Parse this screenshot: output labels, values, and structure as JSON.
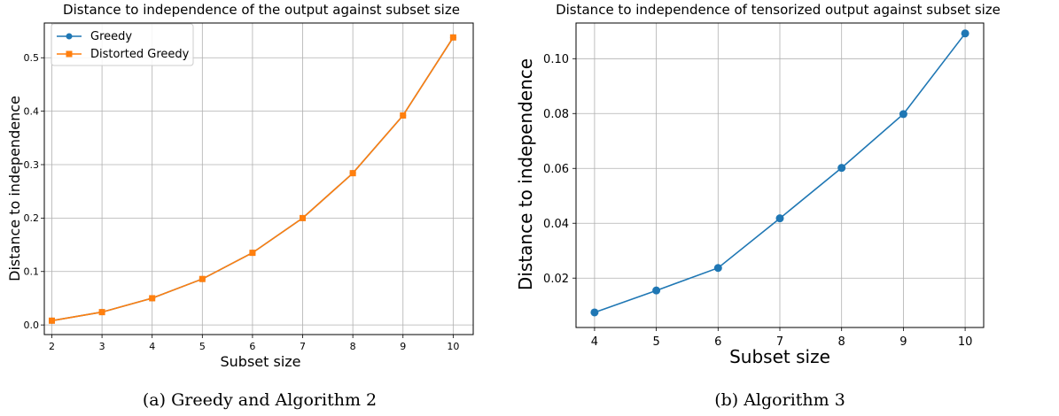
{
  "chart_data": [
    {
      "type": "line",
      "title": "Distance to independence of the output against subset size",
      "xlabel": "Subset size",
      "ylabel": "Distance to independence",
      "caption": "(a) Greedy and Algorithm 2",
      "x": [
        2,
        3,
        4,
        5,
        6,
        7,
        8,
        9,
        10
      ],
      "xticks": [
        "2",
        "3",
        "4",
        "5",
        "6",
        "7",
        "8",
        "9",
        "10"
      ],
      "yticks": [
        "0.0",
        "0.1",
        "0.2",
        "0.3",
        "0.4",
        "0.5"
      ],
      "ytick_values": [
        0.0,
        0.1,
        0.2,
        0.3,
        0.4,
        0.5
      ],
      "xlim": [
        1.85,
        10.4
      ],
      "ylim": [
        -0.018,
        0.565
      ],
      "grid": true,
      "legend": "upper-left",
      "series": [
        {
          "name": "Greedy",
          "color": "#1f77b4",
          "marker": "circle",
          "values": [
            0.008,
            0.024,
            0.05,
            0.086,
            0.135,
            0.2,
            0.284,
            0.392,
            0.538
          ]
        },
        {
          "name": "Distorted Greedy",
          "color": "#ff7f0e",
          "marker": "square",
          "values": [
            0.008,
            0.024,
            0.05,
            0.086,
            0.135,
            0.2,
            0.284,
            0.392,
            0.538
          ]
        }
      ]
    },
    {
      "type": "line",
      "title": "Distance to independence of tensorized output against subset size",
      "xlabel": "Subset size",
      "ylabel": "Distance to independence",
      "caption": "(b) Algorithm 3",
      "x": [
        4,
        5,
        6,
        7,
        8,
        9,
        10
      ],
      "xticks": [
        "4",
        "5",
        "6",
        "7",
        "8",
        "9",
        "10"
      ],
      "yticks": [
        "0.02",
        "0.04",
        "0.06",
        "0.08",
        "0.10"
      ],
      "ytick_values": [
        0.02,
        0.04,
        0.06,
        0.08,
        0.1
      ],
      "xlim": [
        3.7,
        10.3
      ],
      "ylim": [
        0.002,
        0.113
      ],
      "grid": true,
      "legend": "none",
      "series": [
        {
          "color": "#1f77b4",
          "marker": "circle",
          "values": [
            0.0075,
            0.0155,
            0.0237,
            0.0418,
            0.0602,
            0.0798,
            0.1092
          ]
        }
      ]
    }
  ]
}
